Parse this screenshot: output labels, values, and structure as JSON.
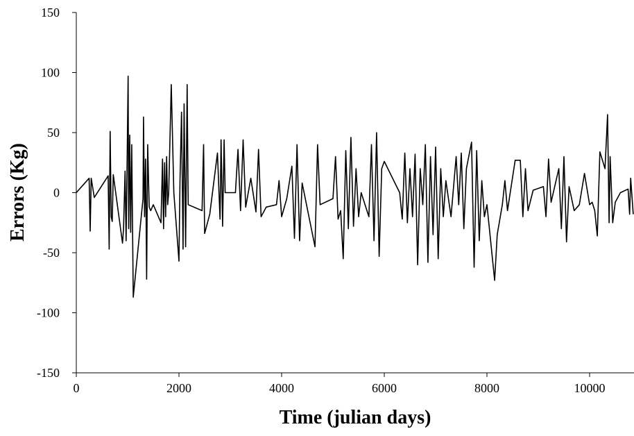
{
  "chart_data": {
    "type": "line",
    "xlabel": "Time (julian days)",
    "ylabel": "Errors (Kg)",
    "xlim": [
      0,
      10865
    ],
    "ylim": [
      -150,
      150
    ],
    "xticks": [
      0,
      2000,
      4000,
      6000,
      8000,
      10000
    ],
    "yticks": [
      -150,
      -100,
      -50,
      0,
      50,
      100,
      150
    ],
    "series": [
      {
        "color": "#000000",
        "x": [
          0,
          250,
          270,
          290,
          350,
          620,
          640,
          660,
          680,
          700,
          720,
          900,
          920,
          950,
          970,
          990,
          1010,
          1020,
          1040,
          1060,
          1080,
          1110,
          1300,
          1310,
          1330,
          1350,
          1370,
          1390,
          1420,
          1450,
          1500,
          1650,
          1680,
          1700,
          1720,
          1740,
          1760,
          1780,
          1800,
          1850,
          1900,
          2000,
          2020,
          2050,
          2080,
          2100,
          2130,
          2160,
          2180,
          2450,
          2480,
          2500,
          2600,
          2750,
          2800,
          2820,
          2850,
          2880,
          2900,
          3100,
          3150,
          3200,
          3250,
          3300,
          3400,
          3500,
          3550,
          3600,
          3700,
          3900,
          3950,
          4000,
          4100,
          4200,
          4250,
          4300,
          4350,
          4400,
          4650,
          4700,
          4750,
          5000,
          5050,
          5100,
          5150,
          5200,
          5250,
          5300,
          5350,
          5400,
          5450,
          5500,
          5550,
          5700,
          5750,
          5800,
          5850,
          5900,
          5950,
          6000,
          6300,
          6350,
          6400,
          6450,
          6500,
          6550,
          6600,
          6650,
          6700,
          6750,
          6800,
          6850,
          6900,
          6950,
          7000,
          7050,
          7100,
          7150,
          7200,
          7300,
          7400,
          7450,
          7500,
          7550,
          7600,
          7700,
          7750,
          7800,
          7850,
          7900,
          7950,
          8000,
          8150,
          8200,
          8300,
          8350,
          8400,
          8550,
          8650,
          8700,
          8750,
          8800,
          8900,
          9100,
          9150,
          9200,
          9250,
          9400,
          9450,
          9500,
          9550,
          9600,
          9700,
          9800,
          9900,
          10000,
          10050,
          10100,
          10150,
          10200,
          10300,
          10350,
          10380,
          10400,
          10450,
          10500,
          10600,
          10750,
          10780,
          10800,
          10850
        ],
        "values": [
          0,
          12,
          -32,
          12,
          -4,
          14,
          -47,
          51,
          -20,
          -24,
          15,
          -42,
          -30,
          18,
          -40,
          28,
          97,
          -30,
          48,
          -33,
          40,
          -87,
          -5,
          63,
          -20,
          28,
          -72,
          40,
          -12,
          -15,
          -10,
          -25,
          28,
          -30,
          25,
          -20,
          30,
          -10,
          0,
          90,
          0,
          -57,
          10,
          67,
          -47,
          74,
          -45,
          90,
          -10,
          -15,
          40,
          -34,
          -18,
          33,
          -22,
          44,
          -28,
          44,
          0,
          0,
          36,
          -15,
          44,
          -12,
          12,
          -16,
          36,
          -20,
          -12,
          -10,
          10,
          -20,
          -5,
          22,
          -38,
          40,
          -40,
          8,
          -45,
          40,
          -10,
          -5,
          30,
          -22,
          -15,
          -55,
          35,
          -30,
          46,
          -28,
          20,
          -20,
          0,
          -20,
          40,
          -40,
          50,
          -53,
          20,
          26,
          0,
          -22,
          33,
          -25,
          20,
          -20,
          32,
          -60,
          20,
          -10,
          40,
          -58,
          30,
          -35,
          38,
          -55,
          20,
          -20,
          10,
          -20,
          30,
          -10,
          33,
          -30,
          20,
          42,
          -62,
          35,
          -40,
          10,
          -20,
          -10,
          -73,
          -35,
          -10,
          10,
          -15,
          27,
          27,
          -20,
          20,
          -15,
          2,
          5,
          -20,
          28,
          -8,
          20,
          -30,
          30,
          -41,
          5,
          -15,
          -10,
          16,
          -10,
          -8,
          -15,
          -36,
          34,
          20,
          65,
          -25,
          30,
          -25,
          -8,
          0,
          3,
          -18,
          12,
          -18
        ]
      }
    ]
  }
}
